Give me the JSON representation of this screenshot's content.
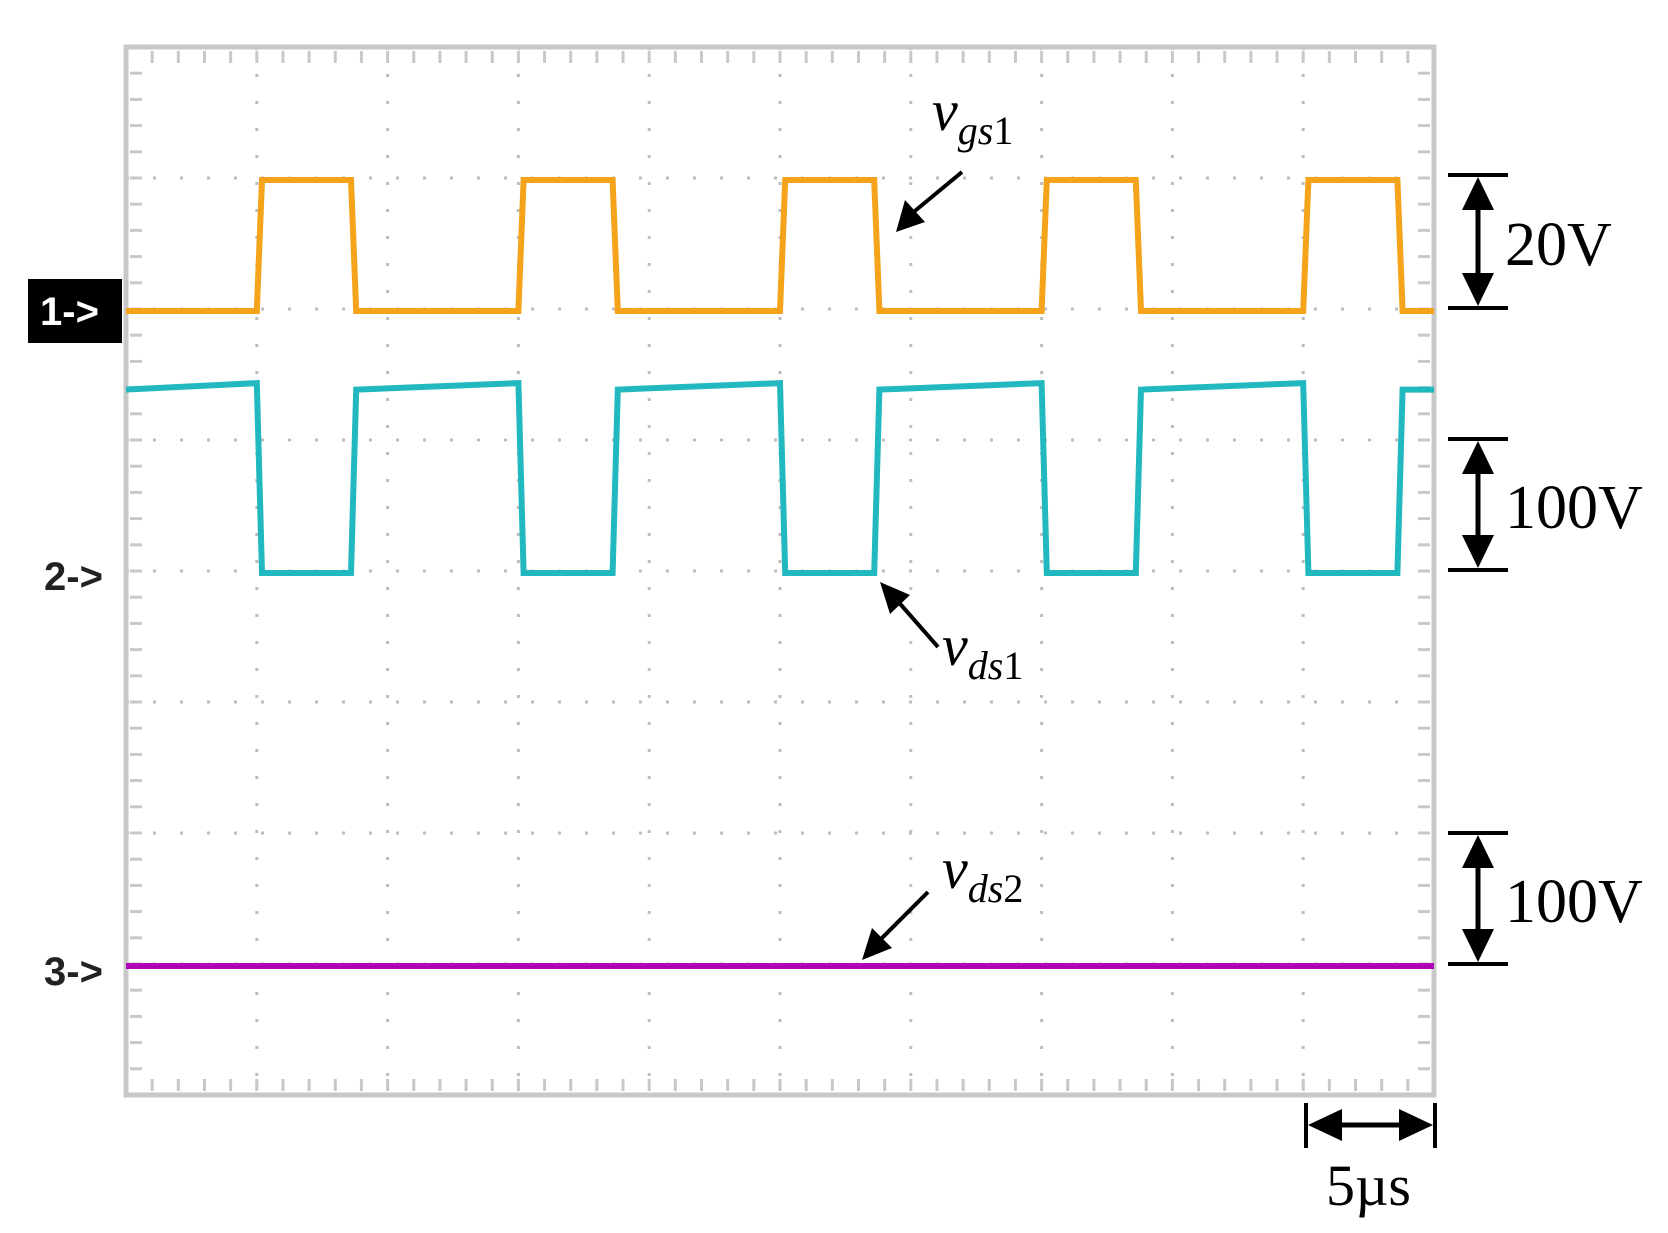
{
  "chart_data": {
    "type": "line",
    "title": "",
    "xlabel": "",
    "ylabel": "",
    "x_unit": "µs",
    "x_range": [
      0,
      50
    ],
    "y_range_div": [
      0,
      8
    ],
    "x_divisions": 10,
    "y_divisions": 8,
    "grid": "dotted",
    "series": [
      {
        "name": "vgs1",
        "label_main": "v",
        "label_sub": "gs",
        "label_num": "1",
        "channel_marker": "1->",
        "color": "#f5a31b",
        "scale_label": "20V",
        "volts_per_div": 20,
        "x": [
          0,
          5.0,
          5.2,
          8.6,
          8.8,
          15.0,
          15.2,
          18.6,
          18.8,
          25.0,
          25.2,
          28.6,
          28.8,
          35.0,
          35.2,
          38.6,
          38.8,
          45.0,
          45.2,
          48.6,
          48.8,
          50
        ],
        "y": [
          0,
          0,
          20,
          20,
          0,
          0,
          20,
          20,
          0,
          0,
          20,
          20,
          0,
          0,
          20,
          20,
          0,
          0,
          20,
          20,
          0,
          0
        ]
      },
      {
        "name": "vds1",
        "label_main": "v",
        "label_sub": "ds",
        "label_num": "1",
        "channel_marker": "2->",
        "color": "#21b8c0",
        "scale_label": "100V",
        "volts_per_div": 100,
        "x": [
          0,
          5.0,
          5.2,
          8.6,
          8.8,
          15.0,
          15.2,
          18.6,
          18.8,
          25.0,
          25.2,
          28.6,
          28.8,
          35.0,
          35.2,
          38.6,
          38.8,
          45.0,
          45.2,
          48.6,
          48.8,
          50
        ],
        "y": [
          140,
          145,
          0,
          0,
          140,
          145,
          0,
          0,
          140,
          145,
          0,
          0,
          140,
          145,
          0,
          0,
          140,
          145,
          0,
          0,
          140,
          140
        ]
      },
      {
        "name": "vds2",
        "label_main": "v",
        "label_sub": "ds",
        "label_num": "2",
        "channel_marker": "3->",
        "color": "#b000b8",
        "scale_label": "100V",
        "volts_per_div": 100,
        "x": [
          0,
          50
        ],
        "y": [
          0,
          0
        ]
      }
    ],
    "time_scale_label": "5µs"
  }
}
